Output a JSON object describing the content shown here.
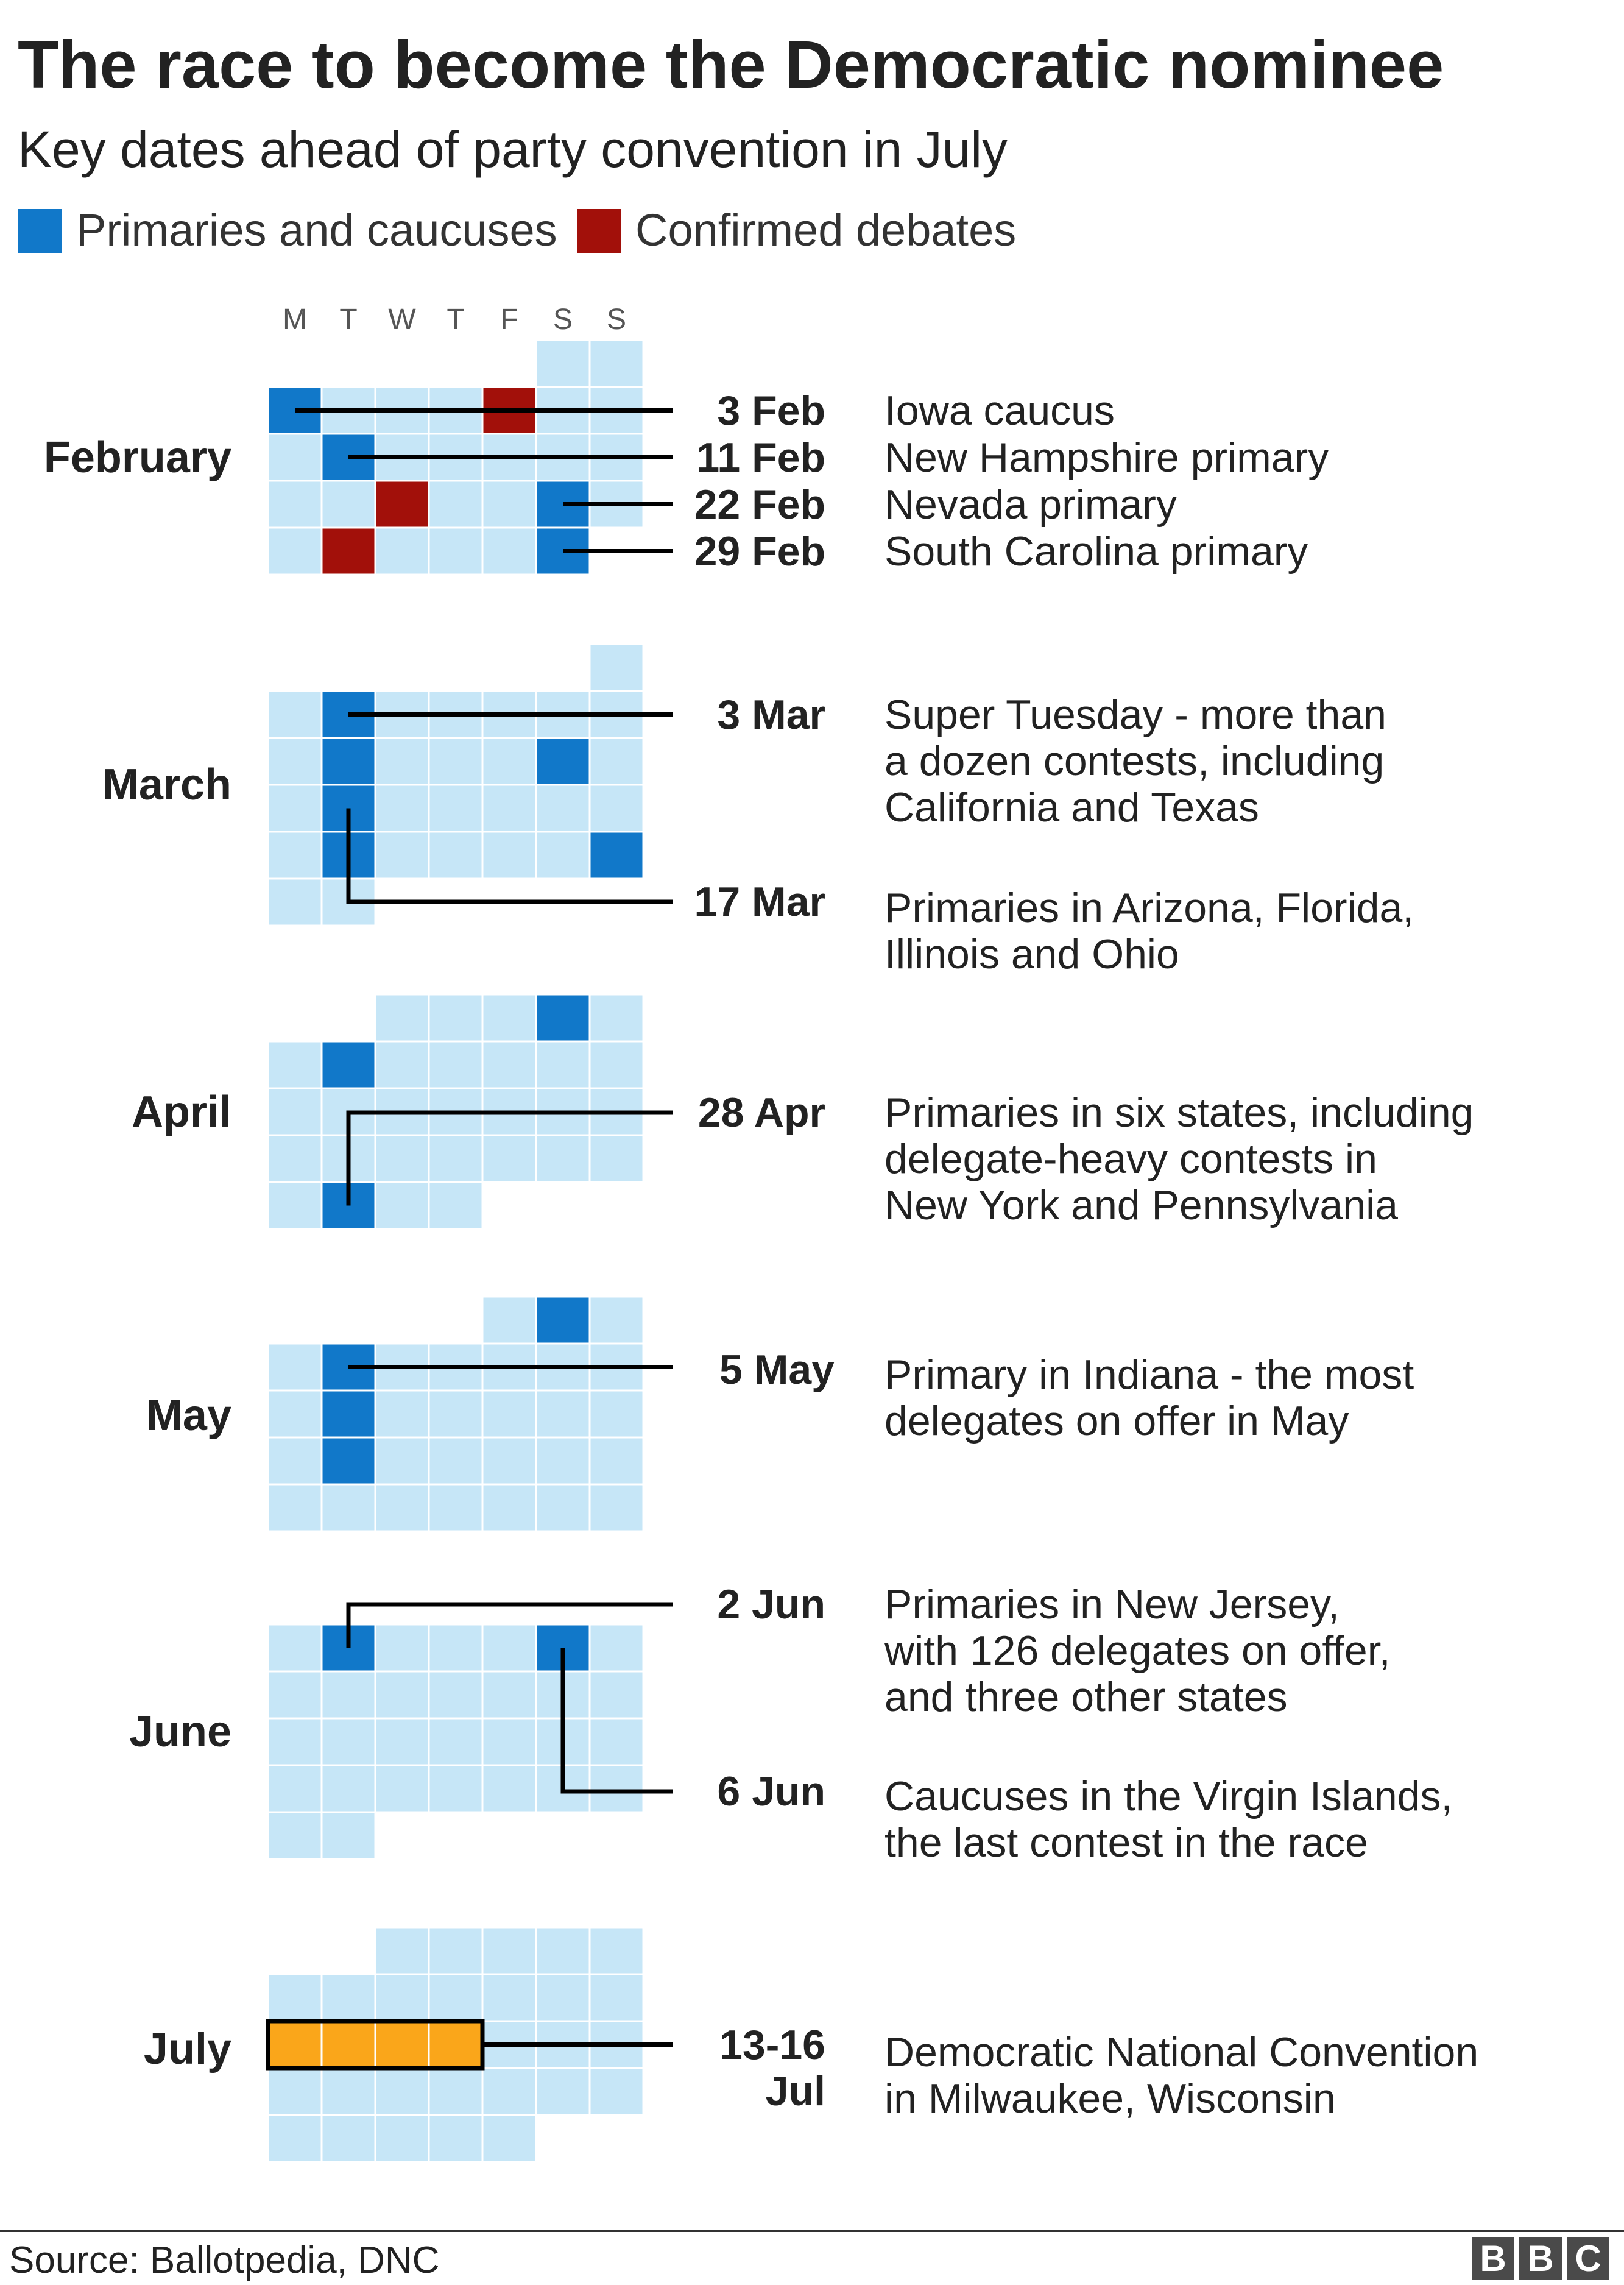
{
  "title": "The race to become the Democratic nominee",
  "subtitle": "Key dates ahead of party convention in July",
  "legend": [
    {
      "label": "Primaries and caucuses",
      "color": "#1178c9"
    },
    {
      "label": "Confirmed debates",
      "color": "#a2100a"
    }
  ],
  "colors": {
    "empty_day": "#c6e6f7",
    "convention": "#faa61a",
    "connector": "#000000"
  },
  "weekdays": [
    "M",
    "T",
    "W",
    "T",
    "F",
    "S",
    "S"
  ],
  "months": [
    {
      "name": "February",
      "first_weekday": 5,
      "days": 29,
      "primaries": [
        3,
        11,
        22,
        29
      ],
      "debates": [
        7,
        19,
        25
      ],
      "convention": [],
      "events": [
        {
          "date": "3 Feb",
          "day": 3,
          "text": "Iowa caucus"
        },
        {
          "date": "11 Feb",
          "day": 11,
          "text": "New Hampshire primary"
        },
        {
          "date": "22 Feb",
          "day": 22,
          "text": "Nevada primary"
        },
        {
          "date": "29 Feb",
          "day": 29,
          "text": "South Carolina primary"
        }
      ]
    },
    {
      "name": "March",
      "first_weekday": 6,
      "days": 31,
      "primaries": [
        3,
        10,
        14,
        17,
        24,
        29
      ],
      "debates": [],
      "convention": [],
      "events": [
        {
          "date": "3 Mar",
          "day": 3,
          "text": "Super Tuesday - more than\na dozen contests, including\nCalifornia and Texas"
        },
        {
          "date": "17 Mar",
          "day": 17,
          "text": "Primaries in Arizona, Florida,\nIllinois and Ohio"
        }
      ]
    },
    {
      "name": "April",
      "first_weekday": 2,
      "days": 30,
      "primaries": [
        4,
        7,
        28
      ],
      "debates": [],
      "convention": [],
      "events": [
        {
          "date": "28 Apr",
          "day": 28,
          "text": "Primaries in six states, including\ndelegate-heavy contests in\nNew York and Pennsylvania"
        }
      ]
    },
    {
      "name": "May",
      "first_weekday": 4,
      "days": 31,
      "primaries": [
        2,
        5,
        12,
        19
      ],
      "debates": [],
      "convention": [],
      "events": [
        {
          "date": "5 May",
          "day": 5,
          "text": "Primary in Indiana - the most\ndelegates on offer in May"
        }
      ]
    },
    {
      "name": "June",
      "first_weekday": 0,
      "days": 30,
      "primaries": [
        2,
        6
      ],
      "debates": [],
      "convention": [],
      "events": [
        {
          "date": "2 Jun",
          "day": 2,
          "text": "Primaries in New Jersey,\nwith 126 delegates on offer,\nand three other states"
        },
        {
          "date": "6 Jun",
          "day": 6,
          "text": "Caucuses in the Virgin Islands,\nthe last contest in the race"
        }
      ]
    },
    {
      "name": "July",
      "first_weekday": 2,
      "days": 31,
      "primaries": [],
      "debates": [],
      "convention": [
        13,
        14,
        15,
        16
      ],
      "events": [
        {
          "date": "13-16\nJul",
          "day": 13,
          "text": "Democratic National Convention\nin Milwaukee, Wisconsin"
        }
      ]
    }
  ],
  "source": "Source: Ballotpedia, DNC",
  "logo": "BBC"
}
